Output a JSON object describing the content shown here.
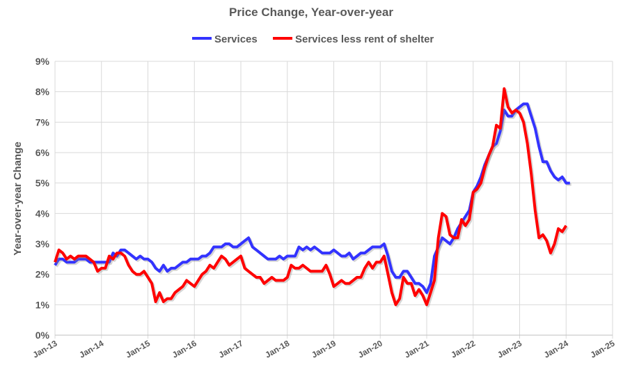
{
  "chart_data": {
    "type": "line",
    "title": "Price Change, Year-over-year",
    "xlabel": "",
    "ylabel": "Year-over-year Change",
    "ylim": [
      0,
      9
    ],
    "yticks": [
      "0%",
      "1%",
      "2%",
      "3%",
      "4%",
      "5%",
      "6%",
      "7%",
      "8%",
      "9%"
    ],
    "xticks": [
      "Jan-13",
      "Jan-14",
      "Jan-15",
      "Jan-16",
      "Jan-17",
      "Jan-18",
      "Jan-19",
      "Jan-20",
      "Jan-21",
      "Jan-22",
      "Jan-23",
      "Jan-24",
      "Jan-25"
    ],
    "x_start": "Jan-13",
    "x_unit": "month",
    "grid": true,
    "legend": "top-center",
    "series": [
      {
        "name": "Services",
        "color": "#3333ff",
        "values": [
          2.3,
          2.5,
          2.5,
          2.4,
          2.4,
          2.4,
          2.5,
          2.5,
          2.5,
          2.4,
          2.4,
          2.4,
          2.4,
          2.4,
          2.4,
          2.7,
          2.6,
          2.8,
          2.8,
          2.7,
          2.6,
          2.5,
          2.6,
          2.5,
          2.5,
          2.4,
          2.2,
          2.1,
          2.3,
          2.1,
          2.2,
          2.2,
          2.3,
          2.4,
          2.4,
          2.5,
          2.5,
          2.5,
          2.6,
          2.6,
          2.7,
          2.9,
          2.9,
          2.9,
          3.0,
          3.0,
          2.9,
          2.9,
          3.0,
          3.1,
          3.2,
          2.9,
          2.8,
          2.7,
          2.6,
          2.5,
          2.5,
          2.5,
          2.6,
          2.5,
          2.6,
          2.6,
          2.6,
          2.9,
          2.8,
          2.9,
          2.8,
          2.9,
          2.8,
          2.7,
          2.7,
          2.7,
          2.8,
          2.7,
          2.6,
          2.6,
          2.7,
          2.5,
          2.6,
          2.7,
          2.7,
          2.8,
          2.9,
          2.9,
          2.9,
          3.0,
          2.6,
          2.1,
          1.9,
          1.9,
          2.1,
          2.1,
          1.9,
          1.7,
          1.7,
          1.6,
          1.4,
          1.7,
          2.6,
          2.9,
          3.2,
          3.1,
          3.0,
          3.2,
          3.5,
          3.7,
          3.9,
          4.1,
          4.7,
          4.9,
          5.2,
          5.6,
          5.9,
          6.2,
          6.3,
          6.7,
          7.4,
          7.2,
          7.2,
          7.4,
          7.5,
          7.6,
          7.6,
          7.2,
          6.8,
          6.2,
          5.7,
          5.7,
          5.4,
          5.2,
          5.1,
          5.2,
          5.0,
          5.0
        ]
      },
      {
        "name": "Services less rent of shelter",
        "color": "#ff0000",
        "values": [
          2.4,
          2.8,
          2.7,
          2.5,
          2.6,
          2.5,
          2.6,
          2.6,
          2.6,
          2.5,
          2.4,
          2.1,
          2.2,
          2.2,
          2.6,
          2.5,
          2.7,
          2.7,
          2.6,
          2.3,
          2.1,
          2.0,
          2.0,
          2.1,
          1.9,
          1.7,
          1.1,
          1.4,
          1.1,
          1.2,
          1.2,
          1.4,
          1.5,
          1.6,
          1.8,
          1.7,
          1.6,
          1.8,
          2.0,
          2.1,
          2.3,
          2.2,
          2.4,
          2.6,
          2.5,
          2.3,
          2.4,
          2.5,
          2.6,
          2.2,
          2.1,
          2.0,
          1.9,
          1.9,
          1.7,
          1.8,
          1.9,
          1.8,
          1.8,
          1.8,
          1.9,
          2.3,
          2.2,
          2.2,
          2.3,
          2.2,
          2.1,
          2.1,
          2.1,
          2.1,
          2.3,
          2.0,
          1.6,
          1.7,
          1.8,
          1.7,
          1.7,
          1.8,
          1.9,
          1.9,
          2.2,
          2.4,
          2.2,
          2.4,
          2.4,
          2.6,
          2.0,
          1.4,
          1.0,
          1.2,
          1.9,
          1.7,
          1.7,
          1.3,
          1.5,
          1.3,
          1.0,
          1.4,
          1.8,
          3.2,
          4.0,
          3.9,
          3.3,
          3.2,
          3.2,
          3.8,
          3.6,
          3.8,
          4.7,
          4.8,
          5.0,
          5.5,
          5.9,
          6.2,
          6.9,
          6.8,
          8.1,
          7.5,
          7.3,
          7.4,
          7.3,
          7.0,
          6.3,
          5.3,
          4.1,
          3.2,
          3.3,
          3.1,
          2.7,
          3.0,
          3.5,
          3.4,
          3.6
        ]
      }
    ]
  }
}
